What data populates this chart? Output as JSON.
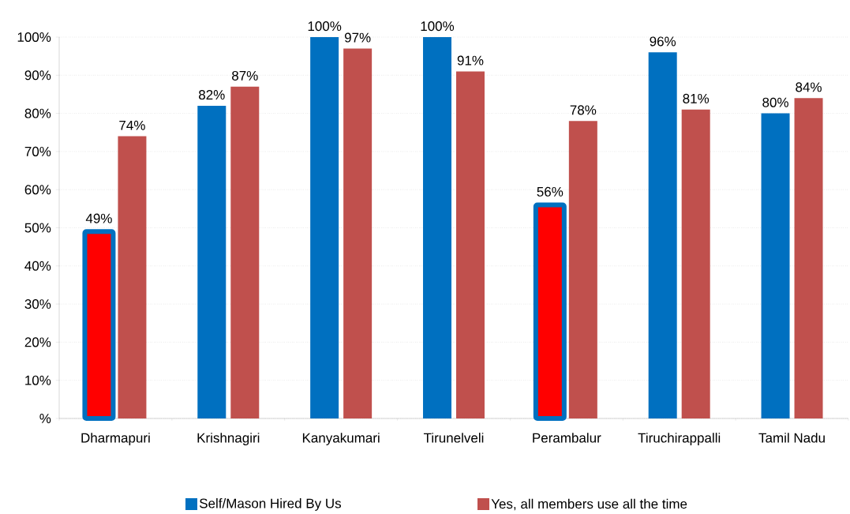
{
  "chart_data": {
    "type": "bar",
    "categories": [
      "Dharmapuri",
      "Krishnagiri",
      "Kanyakumari",
      "Tirunelveli",
      "Perambalur",
      "Tiruchirappalli",
      "Tamil Nadu"
    ],
    "series": [
      {
        "name": "Self/Mason Hired By Us",
        "color": "#0070c0",
        "colors": [
          "#ff0000",
          "#0070c0",
          "#0070c0",
          "#0070c0",
          "#ff0000",
          "#0070c0",
          "#0070c0"
        ],
        "values": [
          49,
          82,
          100,
          100,
          56,
          96,
          80
        ],
        "value_labels": [
          "49%",
          "82%",
          "100%",
          "100%",
          "56%",
          "96%",
          "80%"
        ]
      },
      {
        "name": "Yes, all members use all the time",
        "color": "#c0504d",
        "values": [
          74,
          87,
          97,
          91,
          78,
          81,
          84
        ],
        "value_labels": [
          "74%",
          "87%",
          "97%",
          "91%",
          "78%",
          "81%",
          "84%"
        ]
      }
    ],
    "ylim": [
      0,
      100
    ],
    "yticks": [
      {
        "value": 0,
        "label": "%"
      },
      {
        "value": 10,
        "label": "10%"
      },
      {
        "value": 20,
        "label": "20%"
      },
      {
        "value": 30,
        "label": "30%"
      },
      {
        "value": 40,
        "label": "40%"
      },
      {
        "value": 50,
        "label": "50%"
      },
      {
        "value": 60,
        "label": "60%"
      },
      {
        "value": 70,
        "label": "70%"
      },
      {
        "value": 80,
        "label": "80%"
      },
      {
        "value": 90,
        "label": "90%"
      },
      {
        "value": 100,
        "label": "100%"
      }
    ],
    "grid": "y",
    "legend": "bottom"
  }
}
